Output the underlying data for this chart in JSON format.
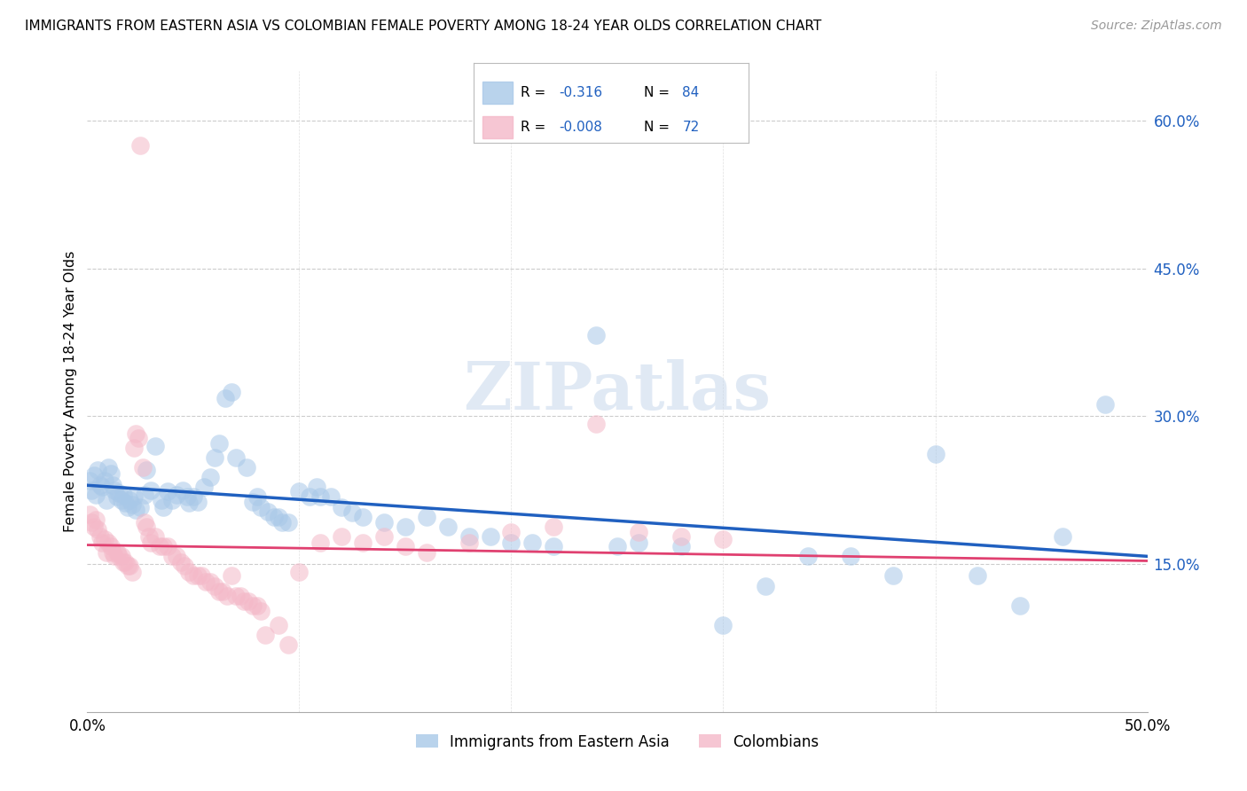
{
  "title": "IMMIGRANTS FROM EASTERN ASIA VS COLOMBIAN FEMALE POVERTY AMONG 18-24 YEAR OLDS CORRELATION CHART",
  "source": "Source: ZipAtlas.com",
  "ylabel": "Female Poverty Among 18-24 Year Olds",
  "xlim": [
    0.0,
    0.5
  ],
  "ylim": [
    0.0,
    0.65
  ],
  "ytick_vals": [
    0.15,
    0.3,
    0.45,
    0.6
  ],
  "ytick_labels": [
    "15.0%",
    "30.0%",
    "45.0%",
    "60.0%"
  ],
  "xticks": [
    0.0,
    0.1,
    0.2,
    0.3,
    0.4,
    0.5
  ],
  "blue_color": "#a8c8e8",
  "pink_color": "#f4b8c8",
  "line_blue": "#2060c0",
  "line_pink": "#e04070",
  "watermark_text": "ZIPatlas",
  "blue_scatter": [
    [
      0.001,
      0.235
    ],
    [
      0.002,
      0.225
    ],
    [
      0.003,
      0.24
    ],
    [
      0.004,
      0.22
    ],
    [
      0.005,
      0.245
    ],
    [
      0.006,
      0.23
    ],
    [
      0.007,
      0.228
    ],
    [
      0.008,
      0.235
    ],
    [
      0.009,
      0.215
    ],
    [
      0.01,
      0.248
    ],
    [
      0.011,
      0.242
    ],
    [
      0.012,
      0.23
    ],
    [
      0.013,
      0.225
    ],
    [
      0.014,
      0.218
    ],
    [
      0.015,
      0.222
    ],
    [
      0.016,
      0.215
    ],
    [
      0.017,
      0.22
    ],
    [
      0.018,
      0.212
    ],
    [
      0.019,
      0.208
    ],
    [
      0.02,
      0.215
    ],
    [
      0.021,
      0.21
    ],
    [
      0.022,
      0.218
    ],
    [
      0.023,
      0.205
    ],
    [
      0.025,
      0.208
    ],
    [
      0.027,
      0.22
    ],
    [
      0.028,
      0.245
    ],
    [
      0.03,
      0.225
    ],
    [
      0.032,
      0.27
    ],
    [
      0.035,
      0.215
    ],
    [
      0.036,
      0.208
    ],
    [
      0.038,
      0.224
    ],
    [
      0.04,
      0.215
    ],
    [
      0.042,
      0.22
    ],
    [
      0.045,
      0.225
    ],
    [
      0.047,
      0.218
    ],
    [
      0.048,
      0.212
    ],
    [
      0.05,
      0.218
    ],
    [
      0.052,
      0.213
    ],
    [
      0.055,
      0.228
    ],
    [
      0.058,
      0.238
    ],
    [
      0.06,
      0.258
    ],
    [
      0.062,
      0.272
    ],
    [
      0.065,
      0.318
    ],
    [
      0.068,
      0.325
    ],
    [
      0.07,
      0.258
    ],
    [
      0.075,
      0.248
    ],
    [
      0.078,
      0.213
    ],
    [
      0.08,
      0.218
    ],
    [
      0.082,
      0.208
    ],
    [
      0.085,
      0.203
    ],
    [
      0.088,
      0.198
    ],
    [
      0.09,
      0.198
    ],
    [
      0.092,
      0.192
    ],
    [
      0.095,
      0.192
    ],
    [
      0.1,
      0.224
    ],
    [
      0.105,
      0.218
    ],
    [
      0.108,
      0.228
    ],
    [
      0.11,
      0.218
    ],
    [
      0.115,
      0.218
    ],
    [
      0.12,
      0.208
    ],
    [
      0.125,
      0.202
    ],
    [
      0.13,
      0.198
    ],
    [
      0.14,
      0.192
    ],
    [
      0.15,
      0.188
    ],
    [
      0.16,
      0.198
    ],
    [
      0.17,
      0.188
    ],
    [
      0.18,
      0.178
    ],
    [
      0.19,
      0.178
    ],
    [
      0.2,
      0.172
    ],
    [
      0.21,
      0.172
    ],
    [
      0.22,
      0.168
    ],
    [
      0.24,
      0.382
    ],
    [
      0.25,
      0.168
    ],
    [
      0.26,
      0.172
    ],
    [
      0.28,
      0.168
    ],
    [
      0.3,
      0.088
    ],
    [
      0.32,
      0.128
    ],
    [
      0.34,
      0.158
    ],
    [
      0.36,
      0.158
    ],
    [
      0.38,
      0.138
    ],
    [
      0.4,
      0.262
    ],
    [
      0.42,
      0.138
    ],
    [
      0.44,
      0.108
    ],
    [
      0.46,
      0.178
    ],
    [
      0.48,
      0.312
    ]
  ],
  "pink_scatter": [
    [
      0.001,
      0.2
    ],
    [
      0.002,
      0.192
    ],
    [
      0.003,
      0.188
    ],
    [
      0.004,
      0.195
    ],
    [
      0.005,
      0.185
    ],
    [
      0.006,
      0.178
    ],
    [
      0.007,
      0.172
    ],
    [
      0.008,
      0.175
    ],
    [
      0.009,
      0.162
    ],
    [
      0.01,
      0.172
    ],
    [
      0.011,
      0.168
    ],
    [
      0.012,
      0.162
    ],
    [
      0.013,
      0.158
    ],
    [
      0.014,
      0.162
    ],
    [
      0.015,
      0.158
    ],
    [
      0.016,
      0.158
    ],
    [
      0.017,
      0.152
    ],
    [
      0.018,
      0.152
    ],
    [
      0.019,
      0.148
    ],
    [
      0.02,
      0.148
    ],
    [
      0.021,
      0.142
    ],
    [
      0.022,
      0.268
    ],
    [
      0.023,
      0.282
    ],
    [
      0.024,
      0.278
    ],
    [
      0.025,
      0.575
    ],
    [
      0.026,
      0.248
    ],
    [
      0.027,
      0.192
    ],
    [
      0.028,
      0.188
    ],
    [
      0.029,
      0.178
    ],
    [
      0.03,
      0.172
    ],
    [
      0.032,
      0.178
    ],
    [
      0.034,
      0.168
    ],
    [
      0.036,
      0.168
    ],
    [
      0.038,
      0.168
    ],
    [
      0.04,
      0.158
    ],
    [
      0.042,
      0.158
    ],
    [
      0.044,
      0.152
    ],
    [
      0.046,
      0.148
    ],
    [
      0.048,
      0.142
    ],
    [
      0.05,
      0.138
    ],
    [
      0.052,
      0.138
    ],
    [
      0.054,
      0.138
    ],
    [
      0.056,
      0.132
    ],
    [
      0.058,
      0.132
    ],
    [
      0.06,
      0.128
    ],
    [
      0.062,
      0.122
    ],
    [
      0.064,
      0.122
    ],
    [
      0.066,
      0.118
    ],
    [
      0.068,
      0.138
    ],
    [
      0.07,
      0.118
    ],
    [
      0.072,
      0.118
    ],
    [
      0.074,
      0.112
    ],
    [
      0.076,
      0.112
    ],
    [
      0.078,
      0.108
    ],
    [
      0.08,
      0.108
    ],
    [
      0.082,
      0.102
    ],
    [
      0.084,
      0.078
    ],
    [
      0.09,
      0.088
    ],
    [
      0.095,
      0.068
    ],
    [
      0.1,
      0.142
    ],
    [
      0.11,
      0.172
    ],
    [
      0.12,
      0.178
    ],
    [
      0.13,
      0.172
    ],
    [
      0.14,
      0.178
    ],
    [
      0.15,
      0.168
    ],
    [
      0.16,
      0.162
    ],
    [
      0.18,
      0.172
    ],
    [
      0.2,
      0.182
    ],
    [
      0.22,
      0.188
    ],
    [
      0.24,
      0.292
    ],
    [
      0.26,
      0.182
    ],
    [
      0.28,
      0.178
    ],
    [
      0.3,
      0.175
    ]
  ]
}
